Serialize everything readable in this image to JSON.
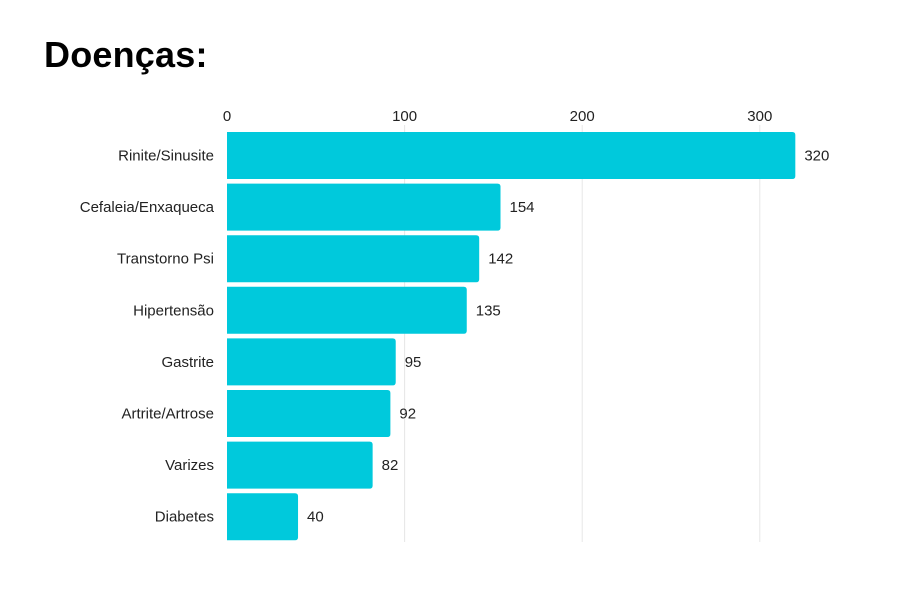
{
  "chart_data": {
    "type": "bar",
    "orientation": "horizontal",
    "title": "Doenças:",
    "categories": [
      "Rinite/Sinusite",
      "Cefaleia/Enxaqueca",
      "Transtorno Psi",
      "Hipertensão",
      "Gastrite",
      "Artrite/Artrose",
      "Varizes",
      "Diabetes"
    ],
    "values": [
      320,
      154,
      142,
      135,
      95,
      92,
      82,
      40
    ],
    "xticks": [
      0,
      100,
      200,
      300
    ],
    "xlim": [
      0,
      330
    ],
    "xaxis_position": "top",
    "grid": true,
    "bar_color": "#00c9dc",
    "grid_color": "#e6e6e6"
  }
}
